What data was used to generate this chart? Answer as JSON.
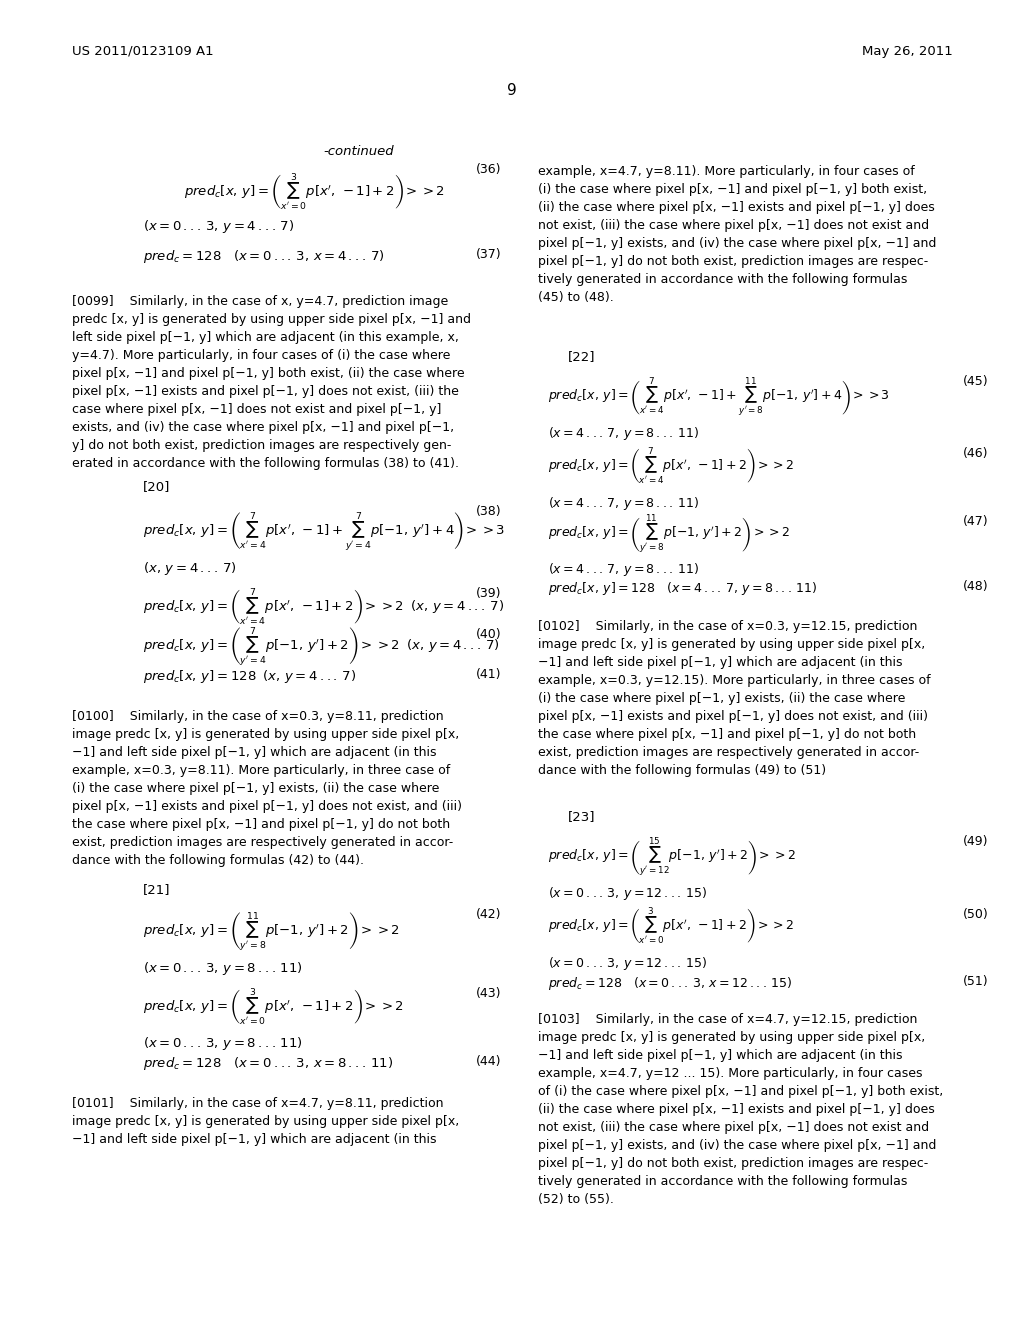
{
  "bg_color": "#ffffff",
  "header_left": "US 2011/0123109 A1",
  "header_right": "May 26, 2011",
  "page_number": "9",
  "continued_label": "-continued"
}
